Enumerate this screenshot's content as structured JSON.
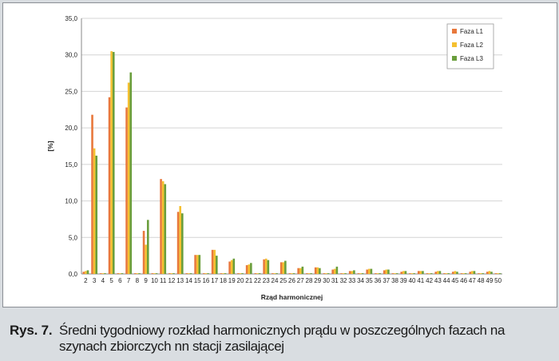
{
  "chart_data": {
    "type": "bar",
    "title": "",
    "xlabel": "Rząd harmonicznej",
    "ylabel": "[%]",
    "ylim": [
      0,
      35
    ],
    "yticks": [
      "0,0",
      "5,0",
      "10,0",
      "15,0",
      "20,0",
      "25,0",
      "30,0",
      "35,0"
    ],
    "grid": true,
    "legend_position": "top-right",
    "categories": [
      "2",
      "3",
      "4",
      "5",
      "6",
      "7",
      "8",
      "9",
      "10",
      "11",
      "12",
      "13",
      "14",
      "15",
      "16",
      "17",
      "18",
      "19",
      "20",
      "21",
      "22",
      "23",
      "24",
      "25",
      "26",
      "27",
      "28",
      "29",
      "30",
      "31",
      "32",
      "33",
      "34",
      "35",
      "36",
      "37",
      "38",
      "39",
      "40",
      "41",
      "42",
      "43",
      "44",
      "45",
      "46",
      "47",
      "48",
      "49",
      "50"
    ],
    "series": [
      {
        "name": "Faza L1",
        "color": "#e8783c",
        "values": [
          0.3,
          21.8,
          0.1,
          24.2,
          0.1,
          22.8,
          0.1,
          5.9,
          0.1,
          13.0,
          0.1,
          8.5,
          0.1,
          2.6,
          0.1,
          3.3,
          0.1,
          1.7,
          0.1,
          1.2,
          0.1,
          2.0,
          0.1,
          1.6,
          0.1,
          0.8,
          0.1,
          0.9,
          0.1,
          0.6,
          0.1,
          0.4,
          0.1,
          0.6,
          0.1,
          0.5,
          0.1,
          0.3,
          0.1,
          0.4,
          0.1,
          0.3,
          0.1,
          0.3,
          0.1,
          0.3,
          0.1,
          0.3,
          0.1
        ]
      },
      {
        "name": "Faza L2",
        "color": "#f5c030",
        "values": [
          0.4,
          17.2,
          0.1,
          30.5,
          0.1,
          26.2,
          0.1,
          4.0,
          0.1,
          12.7,
          0.1,
          9.3,
          0.1,
          2.6,
          0.1,
          3.3,
          0.1,
          1.9,
          0.1,
          1.3,
          0.1,
          2.1,
          0.1,
          1.6,
          0.1,
          0.8,
          0.1,
          0.9,
          0.1,
          0.7,
          0.1,
          0.4,
          0.1,
          0.7,
          0.1,
          0.6,
          0.1,
          0.4,
          0.1,
          0.4,
          0.1,
          0.4,
          0.1,
          0.4,
          0.1,
          0.4,
          0.1,
          0.4,
          0.1
        ]
      },
      {
        "name": "Faza L3",
        "color": "#6a9e3c",
        "values": [
          0.5,
          16.2,
          0.1,
          30.4,
          0.1,
          27.6,
          0.1,
          7.4,
          0.1,
          12.3,
          0.1,
          8.3,
          0.1,
          2.6,
          0.1,
          2.5,
          0.1,
          2.1,
          0.1,
          1.5,
          0.1,
          1.9,
          0.1,
          1.8,
          0.1,
          1.0,
          0.1,
          0.8,
          0.1,
          1.0,
          0.1,
          0.5,
          0.1,
          0.7,
          0.1,
          0.6,
          0.1,
          0.4,
          0.1,
          0.4,
          0.1,
          0.4,
          0.1,
          0.3,
          0.1,
          0.4,
          0.1,
          0.3,
          0.1
        ]
      }
    ]
  },
  "caption": {
    "label": "Rys. 7.",
    "text": "Średni tygodniowy rozkład harmonicznych prądu w poszczególnych fazach na szynach zbiorczych nn stacji zasilającej"
  }
}
